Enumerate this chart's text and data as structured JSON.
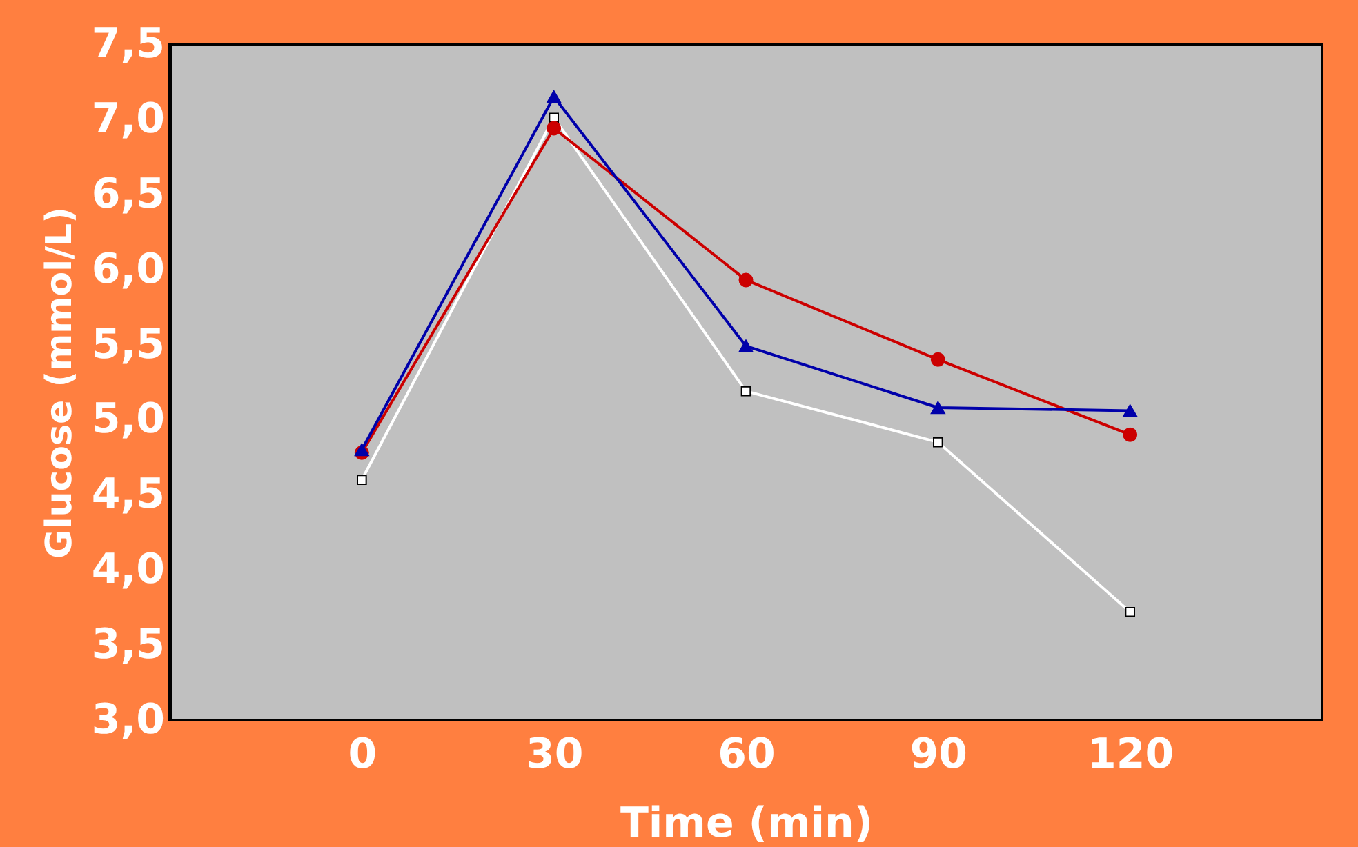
{
  "chart_data": {
    "type": "line",
    "xlabel": "Time (min)",
    "ylabel": "Glucose (mmol/L)",
    "x": [
      0,
      30,
      60,
      90,
      120
    ],
    "xlim": [
      -30,
      150
    ],
    "xticks": [
      0,
      30,
      60,
      90,
      120
    ],
    "ylim": [
      3.0,
      7.5
    ],
    "yticks": [
      {
        "value": 3.0,
        "label": "3,0"
      },
      {
        "value": 3.5,
        "label": "3,5"
      },
      {
        "value": 4.0,
        "label": "4,0"
      },
      {
        "value": 4.5,
        "label": "4,5"
      },
      {
        "value": 5.0,
        "label": "5,0"
      },
      {
        "value": 5.5,
        "label": "5,5"
      },
      {
        "value": 6.0,
        "label": "6,0"
      },
      {
        "value": 6.5,
        "label": "6,5"
      },
      {
        "value": 7.0,
        "label": "7,0"
      },
      {
        "value": 7.5,
        "label": "7,5"
      }
    ],
    "grid": false,
    "line_style": "solid",
    "series": [
      {
        "color": "#ffffff",
        "marker": "square",
        "values": [
          4.6,
          7.01,
          5.19,
          4.85,
          3.72
        ]
      },
      {
        "color": "#cc0000",
        "marker": "circle",
        "values": [
          4.78,
          6.94,
          5.93,
          5.4,
          4.9
        ]
      },
      {
        "color": "#0000aa",
        "marker": "triangle",
        "values": [
          4.8,
          7.15,
          5.49,
          5.08,
          5.06
        ]
      }
    ]
  }
}
